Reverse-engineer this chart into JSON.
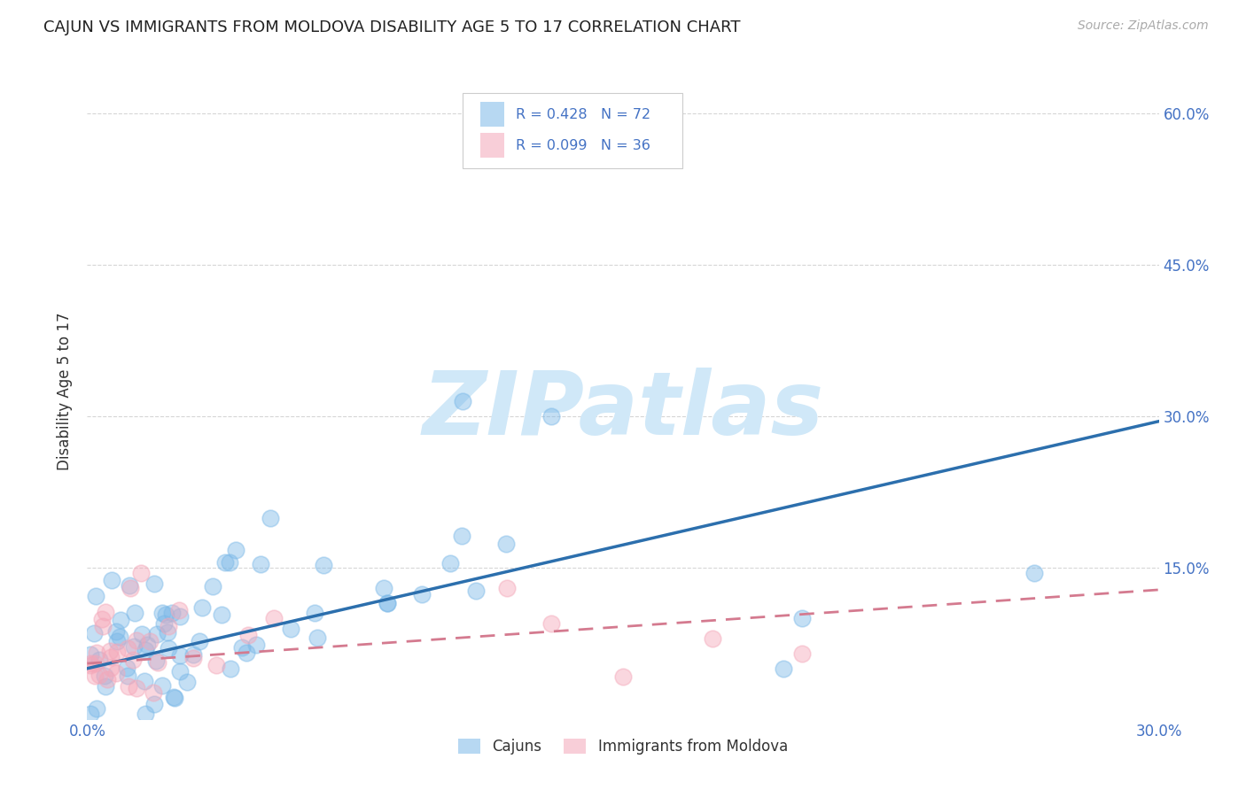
{
  "title": "CAJUN VS IMMIGRANTS FROM MOLDOVA DISABILITY AGE 5 TO 17 CORRELATION CHART",
  "source": "Source: ZipAtlas.com",
  "ylabel": "Disability Age 5 to 17",
  "xlim": [
    0.0,
    0.3
  ],
  "ylim": [
    0.0,
    0.65
  ],
  "yticks_right": [
    0.15,
    0.3,
    0.45,
    0.6
  ],
  "ytick_labels_right": [
    "15.0%",
    "30.0%",
    "45.0%",
    "60.0%"
  ],
  "cajun_color": "#7cb9e8",
  "moldova_color": "#f4a7b9",
  "cajun_line_color": "#2c6fad",
  "moldova_line_color": "#d47a8f",
  "cajun_R": 0.428,
  "cajun_N": 72,
  "moldova_R": 0.099,
  "moldova_N": 36,
  "watermark": "ZIPatlas",
  "watermark_color": "#d0e8f8",
  "legend_label_cajun": "Cajuns",
  "legend_label_moldova": "Immigrants from Moldova",
  "cajun_line_x0": 0.0,
  "cajun_line_y0": 0.05,
  "cajun_line_x1": 0.3,
  "cajun_line_y1": 0.295,
  "moldova_line_x0": 0.0,
  "moldova_line_y0": 0.055,
  "moldova_line_x1": 0.3,
  "moldova_line_y1": 0.128,
  "background_color": "#ffffff",
  "grid_color": "#cccccc",
  "title_fontsize": 13,
  "tick_fontsize": 12,
  "source_fontsize": 10
}
